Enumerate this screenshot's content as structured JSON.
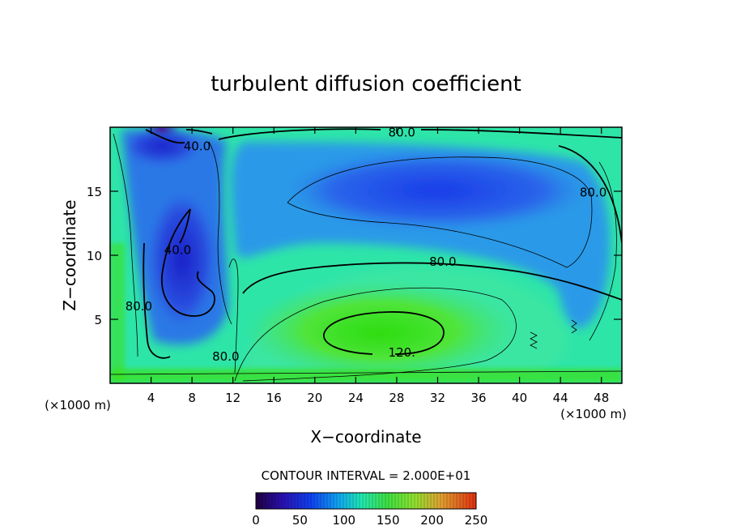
{
  "chart_data": {
    "type": "contour",
    "title": "turbulent diffusion coefficient",
    "xlabel": "X−coordinate",
    "ylabel": "Z−coordinate",
    "x_unit_label_left": "(×1000 m)",
    "x_unit_label_right": "(×1000 m)",
    "xlim": [
      0,
      50
    ],
    "ylim": [
      0,
      20
    ],
    "x_ticks": [
      4,
      8,
      12,
      16,
      20,
      24,
      28,
      32,
      36,
      40,
      44,
      48
    ],
    "x_tick_labels": [
      "4",
      "8",
      "12",
      "16",
      "20",
      "24",
      "28",
      "32",
      "36",
      "40",
      "44",
      "48"
    ],
    "y_ticks": [
      5,
      10,
      15
    ],
    "y_tick_labels": [
      "5",
      "10",
      "15"
    ],
    "contour_interval_text": "CONTOUR INTERVAL = 2.000E+01",
    "colorbar": {
      "range": [
        0,
        250
      ],
      "ticks": [
        0,
        50,
        100,
        150,
        200,
        250
      ],
      "tick_labels": [
        "0",
        "50",
        "100",
        "150",
        "200",
        "250"
      ]
    },
    "contour_labels": [
      {
        "text": "80.0",
        "x": 28.5,
        "z": 19.6
      },
      {
        "text": "40.0",
        "x": 8.5,
        "z": 18.5
      },
      {
        "text": "80.0",
        "x": 47.2,
        "z": 14.9
      },
      {
        "text": "40.0",
        "x": 6.6,
        "z": 10.4
      },
      {
        "text": "80.0",
        "x": 32.5,
        "z": 9.5
      },
      {
        "text": "80.0",
        "x": 2.8,
        "z": 6.0
      },
      {
        "text": "120.",
        "x": 28.5,
        "z": 2.4
      },
      {
        "text": "80.0",
        "x": 11.3,
        "z": 2.1
      }
    ]
  },
  "colors": {
    "background": "#ffffff",
    "field_base": "#2ee5a8",
    "low": "#1a2bd6",
    "very_low": "#3a1a8a",
    "high": "#3ce019"
  }
}
